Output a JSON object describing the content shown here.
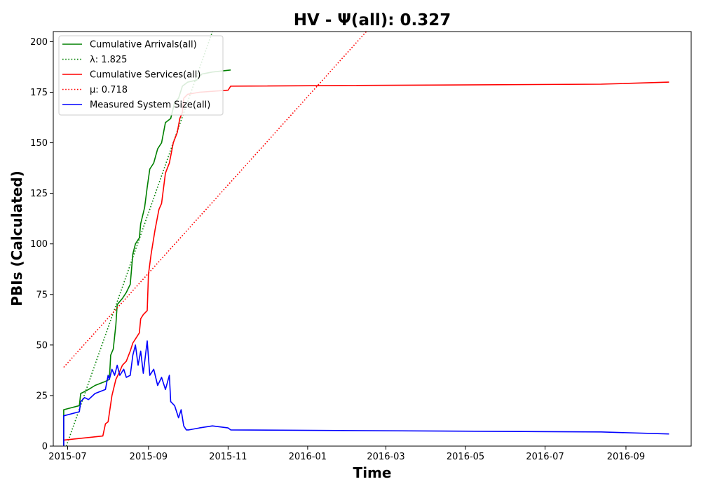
{
  "chart_data": {
    "type": "line",
    "title": "HV -  Ψ(all): 0.327",
    "xlabel": "Time",
    "ylabel": "PBIs (Calculated)",
    "x_domain": [
      "2015-06-20",
      "2016-10-21"
    ],
    "ylim": [
      0,
      205
    ],
    "x_ticks": [
      "2015-07-01",
      "2015-09-01",
      "2015-11-01",
      "2016-01-01",
      "2016-03-01",
      "2016-05-01",
      "2016-07-01",
      "2016-09-01"
    ],
    "x_tick_labels": [
      "2015-07",
      "2015-09",
      "2015-11",
      "2016-01",
      "2016-03",
      "2016-05",
      "2016-07",
      "2016-09"
    ],
    "y_ticks": [
      0,
      25,
      50,
      75,
      100,
      125,
      150,
      175,
      200
    ],
    "y_tick_labels": [
      "0",
      "25",
      "50",
      "75",
      "100",
      "125",
      "150",
      "175",
      "200"
    ],
    "grid": false,
    "legend_position": "top-left",
    "series": [
      {
        "name": "Cumulative Arrivals(all)",
        "color": "#008000",
        "dash": "solid",
        "points": [
          [
            "2015-06-28",
            0
          ],
          [
            "2015-06-28",
            18
          ],
          [
            "2015-07-10",
            20
          ],
          [
            "2015-07-11",
            26
          ],
          [
            "2015-07-14",
            27
          ],
          [
            "2015-07-17",
            28
          ],
          [
            "2015-07-22",
            30
          ],
          [
            "2015-07-30",
            32
          ],
          [
            "2015-08-02",
            33
          ],
          [
            "2015-08-03",
            45
          ],
          [
            "2015-08-05",
            48
          ],
          [
            "2015-08-07",
            60
          ],
          [
            "2015-08-08",
            70
          ],
          [
            "2015-08-12",
            73
          ],
          [
            "2015-08-15",
            76
          ],
          [
            "2015-08-18",
            80
          ],
          [
            "2015-08-20",
            95
          ],
          [
            "2015-08-22",
            100
          ],
          [
            "2015-08-25",
            103
          ],
          [
            "2015-08-26",
            110
          ],
          [
            "2015-08-29",
            118
          ],
          [
            "2015-08-31",
            128
          ],
          [
            "2015-09-02",
            137
          ],
          [
            "2015-09-05",
            140
          ],
          [
            "2015-09-08",
            147
          ],
          [
            "2015-09-11",
            150
          ],
          [
            "2015-09-14",
            160
          ],
          [
            "2015-09-18",
            162
          ],
          [
            "2015-09-21",
            170
          ],
          [
            "2015-09-24",
            172
          ],
          [
            "2015-09-27",
            178
          ],
          [
            "2015-10-01",
            180
          ],
          [
            "2015-10-08",
            181
          ],
          [
            "2015-10-12",
            184
          ],
          [
            "2015-10-20",
            185
          ],
          [
            "2015-11-03",
            186
          ]
        ]
      },
      {
        "name": "λ: 1.825",
        "color": "#008000",
        "dash": "dotted",
        "points": [
          [
            "2015-06-30",
            0
          ],
          [
            "2015-10-20",
            205
          ]
        ]
      },
      {
        "name": "Cumulative Services(all)",
        "color": "#ff0000",
        "dash": "solid",
        "points": [
          [
            "2015-06-28",
            3
          ],
          [
            "2015-07-28",
            5
          ],
          [
            "2015-07-30",
            11
          ],
          [
            "2015-08-01",
            12
          ],
          [
            "2015-08-04",
            25
          ],
          [
            "2015-08-07",
            33
          ],
          [
            "2015-08-10",
            37
          ],
          [
            "2015-08-12",
            40
          ],
          [
            "2015-08-15",
            42
          ],
          [
            "2015-08-18",
            47
          ],
          [
            "2015-08-20",
            51
          ],
          [
            "2015-08-23",
            54
          ],
          [
            "2015-08-25",
            56
          ],
          [
            "2015-08-26",
            63
          ],
          [
            "2015-08-28",
            65
          ],
          [
            "2015-08-31",
            67
          ],
          [
            "2015-09-01",
            85
          ],
          [
            "2015-09-03",
            95
          ],
          [
            "2015-09-06",
            107
          ],
          [
            "2015-09-09",
            117
          ],
          [
            "2015-09-11",
            120
          ],
          [
            "2015-09-14",
            135
          ],
          [
            "2015-09-17",
            140
          ],
          [
            "2015-09-20",
            150
          ],
          [
            "2015-09-23",
            155
          ],
          [
            "2015-09-25",
            162
          ],
          [
            "2015-09-27",
            165
          ],
          [
            "2015-09-28",
            172
          ],
          [
            "2015-10-01",
            174
          ],
          [
            "2015-10-10",
            175
          ],
          [
            "2015-11-01",
            176
          ],
          [
            "2015-11-03",
            178
          ],
          [
            "2016-08-13",
            179
          ],
          [
            "2016-10-04",
            180
          ]
        ]
      },
      {
        "name": "μ: 0.718",
        "color": "#ff0000",
        "dash": "dotted",
        "points": [
          [
            "2015-06-28",
            39
          ],
          [
            "2016-02-15",
            205
          ]
        ]
      },
      {
        "name": "Measured System Size(all)",
        "color": "#0000ff",
        "dash": "solid",
        "points": [
          [
            "2015-06-28",
            0
          ],
          [
            "2015-06-28",
            15
          ],
          [
            "2015-07-10",
            17
          ],
          [
            "2015-07-11",
            22
          ],
          [
            "2015-07-14",
            24
          ],
          [
            "2015-07-17",
            23
          ],
          [
            "2015-07-22",
            26
          ],
          [
            "2015-07-30",
            28
          ],
          [
            "2015-08-01",
            35
          ],
          [
            "2015-08-02",
            33
          ],
          [
            "2015-08-04",
            38
          ],
          [
            "2015-08-06",
            35
          ],
          [
            "2015-08-08",
            40
          ],
          [
            "2015-08-10",
            35
          ],
          [
            "2015-08-13",
            38
          ],
          [
            "2015-08-15",
            34
          ],
          [
            "2015-08-18",
            35
          ],
          [
            "2015-08-20",
            45
          ],
          [
            "2015-08-22",
            50
          ],
          [
            "2015-08-24",
            40
          ],
          [
            "2015-08-26",
            47
          ],
          [
            "2015-08-28",
            36
          ],
          [
            "2015-08-31",
            52
          ],
          [
            "2015-09-02",
            35
          ],
          [
            "2015-09-05",
            38
          ],
          [
            "2015-09-08",
            30
          ],
          [
            "2015-09-11",
            34
          ],
          [
            "2015-09-14",
            28
          ],
          [
            "2015-09-17",
            35
          ],
          [
            "2015-09-18",
            22
          ],
          [
            "2015-09-21",
            20
          ],
          [
            "2015-09-24",
            14
          ],
          [
            "2015-09-26",
            18
          ],
          [
            "2015-09-28",
            10
          ],
          [
            "2015-09-30",
            8
          ],
          [
            "2015-10-02",
            8
          ],
          [
            "2015-10-10",
            9
          ],
          [
            "2015-10-20",
            10
          ],
          [
            "2015-11-01",
            9
          ],
          [
            "2015-11-03",
            8
          ],
          [
            "2016-08-13",
            7
          ],
          [
            "2016-10-04",
            6
          ]
        ]
      }
    ]
  }
}
